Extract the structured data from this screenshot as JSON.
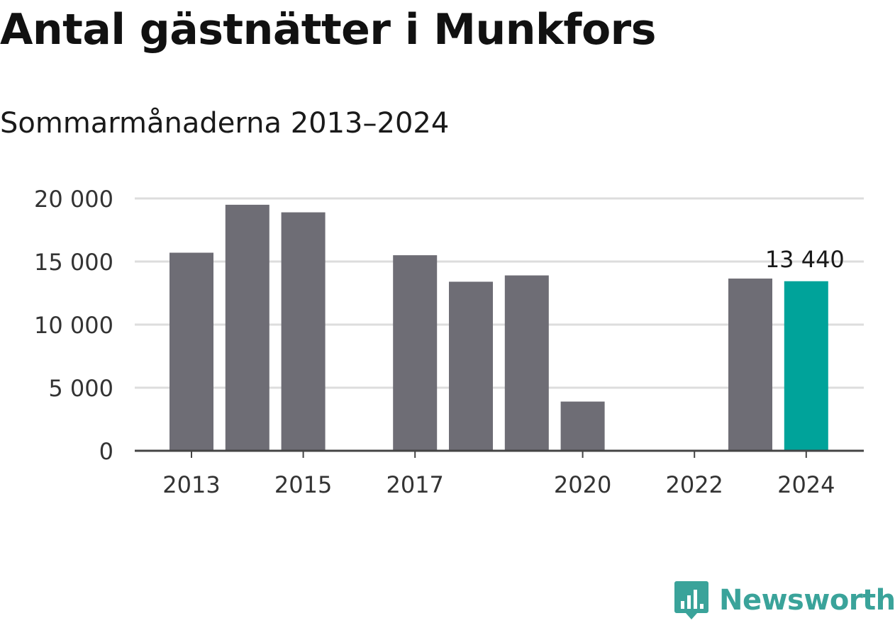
{
  "header": {
    "title": "Antal gästnätter i Munkfors",
    "subtitle": "Sommarmånaderna 2013–2024"
  },
  "logo": {
    "name": "Newsworthy",
    "icon": "newsworthy-logo-icon",
    "color": "#3aa39a"
  },
  "colors": {
    "bar": "#6e6d75",
    "highlight": "#00a39a",
    "grid": "#dddddd",
    "axis": "#444444"
  },
  "chart_data": {
    "type": "bar",
    "title": "Antal gästnätter i Munkfors",
    "subtitle": "Sommarmånaderna 2013–2024",
    "xlabel": "",
    "ylabel": "",
    "categories": [
      "2013",
      "2014",
      "2015",
      "2016",
      "2017",
      "2018",
      "2019",
      "2020",
      "2021",
      "2022",
      "2023",
      "2024"
    ],
    "values": [
      15700,
      19500,
      18900,
      null,
      15500,
      13400,
      13900,
      3900,
      null,
      null,
      13650,
      13440
    ],
    "highlight_index": 11,
    "data_labels": [
      {
        "index": 11,
        "text": "13 440"
      }
    ],
    "x_tick_labels": [
      "2013",
      "2015",
      "2017",
      "2020",
      "2022",
      "2024"
    ],
    "y_ticks": [
      0,
      5000,
      10000,
      15000,
      20000
    ],
    "y_tick_labels": [
      "0",
      "5 000",
      "10 000",
      "15 000",
      "20 000"
    ],
    "ylim": [
      0,
      20000
    ],
    "grid": true,
    "legend": "none"
  }
}
